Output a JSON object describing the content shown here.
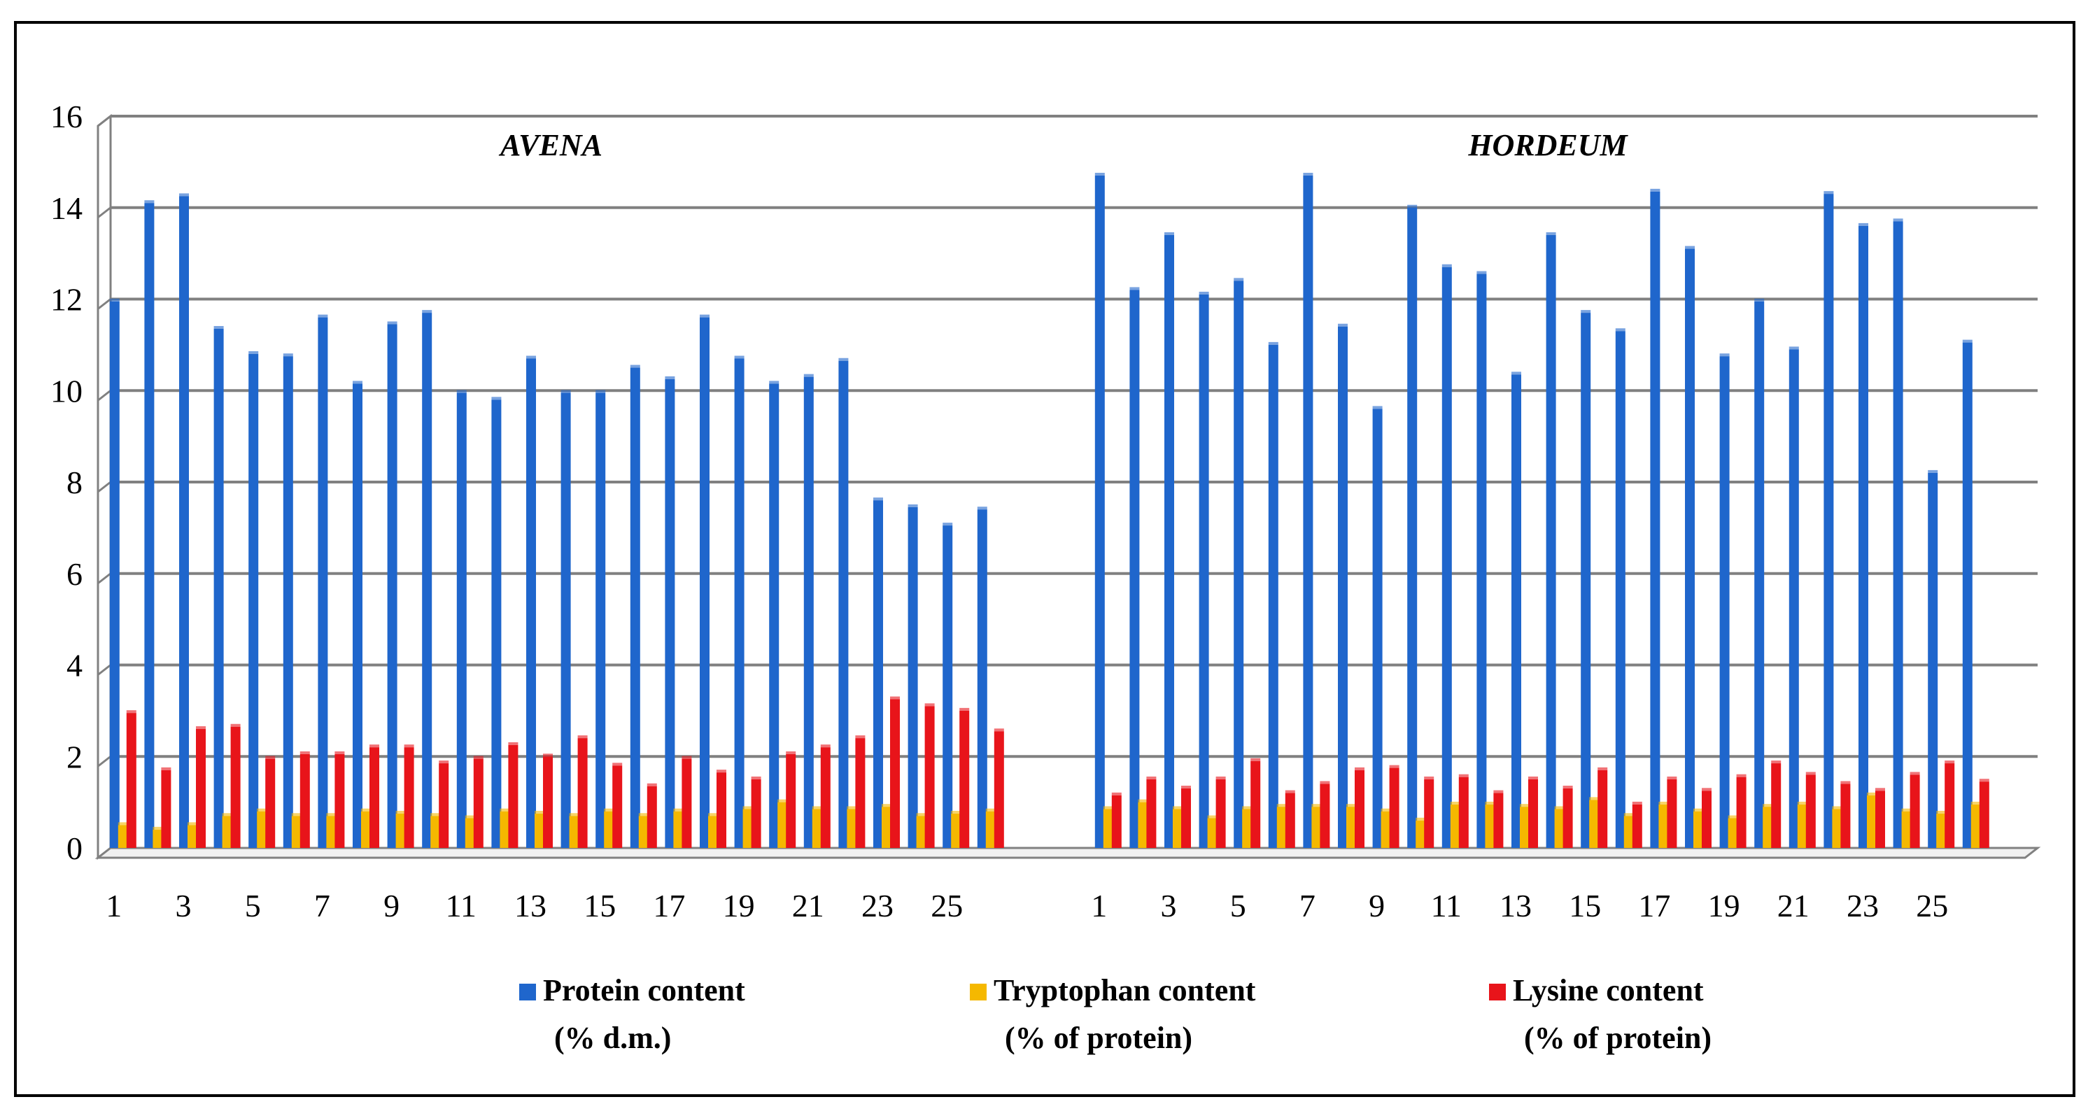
{
  "chart_data": {
    "type": "bar",
    "ylim": [
      0,
      16
    ],
    "yticks": [
      "0",
      "2",
      "4",
      "6",
      "8",
      "10",
      "12",
      "14",
      "16"
    ],
    "grid": true,
    "legend_placement": "bottom",
    "groups": [
      {
        "label": "AVENA",
        "categories": [
          "1",
          "2",
          "3",
          "4",
          "5",
          "6",
          "7",
          "8",
          "9",
          "10",
          "11",
          "12",
          "13",
          "14",
          "15",
          "16",
          "17",
          "18",
          "19",
          "20",
          "21",
          "22",
          "23",
          "24",
          "25",
          "26"
        ],
        "tick_labels": [
          "1",
          "3",
          "5",
          "7",
          "9",
          "11",
          "13",
          "15",
          "17",
          "19",
          "21",
          "23",
          "25"
        ],
        "series": [
          {
            "name": "Protein content (% d.m.)",
            "values": [
              11.95,
              14.1,
              14.25,
              11.35,
              10.8,
              10.75,
              11.6,
              10.15,
              11.45,
              11.7,
              9.95,
              9.8,
              10.7,
              9.95,
              9.95,
              10.5,
              10.25,
              11.6,
              10.7,
              10.15,
              10.3,
              10.65,
              7.6,
              7.45,
              7.05,
              7.4
            ]
          },
          {
            "name": "Tryptophan content (% of protein)",
            "values": [
              0.5,
              0.4,
              0.5,
              0.7,
              0.8,
              0.7,
              0.7,
              0.8,
              0.75,
              0.7,
              0.65,
              0.8,
              0.75,
              0.7,
              0.8,
              0.7,
              0.8,
              0.7,
              0.85,
              1.0,
              0.85,
              0.85,
              0.9,
              0.7,
              0.75,
              0.8
            ]
          },
          {
            "name": "Lysine content (% of protein)",
            "values": [
              2.95,
              1.7,
              2.6,
              2.65,
              1.95,
              2.05,
              2.05,
              2.2,
              2.2,
              1.85,
              1.95,
              2.25,
              2.0,
              2.4,
              1.8,
              1.35,
              1.95,
              1.65,
              1.5,
              2.05,
              2.2,
              2.4,
              3.25,
              3.1,
              3.0,
              2.55
            ]
          }
        ]
      },
      {
        "label": "HORDEUM",
        "categories": [
          "1",
          "2",
          "3",
          "4",
          "5",
          "6",
          "7",
          "8",
          "9",
          "10",
          "11",
          "12",
          "13",
          "14",
          "15",
          "16",
          "17",
          "18",
          "19",
          "20",
          "21",
          "22",
          "23",
          "24",
          "25",
          "26"
        ],
        "tick_labels": [
          "1",
          "3",
          "5",
          "7",
          "9",
          "11",
          "13",
          "15",
          "17",
          "19",
          "21",
          "23",
          "25"
        ],
        "series": [
          {
            "name": "Protein content (% d.m.)",
            "values": [
              14.7,
              12.2,
              13.4,
              12.1,
              12.4,
              11.0,
              14.7,
              11.4,
              9.6,
              14.0,
              12.7,
              12.55,
              10.35,
              13.4,
              11.7,
              11.3,
              14.35,
              13.1,
              10.75,
              11.95,
              10.9,
              14.3,
              13.6,
              13.7,
              8.2,
              11.05
            ]
          },
          {
            "name": "Tryptophan content (% of protein)",
            "values": [
              0.85,
              1.0,
              0.85,
              0.65,
              0.85,
              0.9,
              0.9,
              0.9,
              0.8,
              0.6,
              0.95,
              0.95,
              0.9,
              0.85,
              1.05,
              0.7,
              0.95,
              0.8,
              0.65,
              0.9,
              0.95,
              0.85,
              1.15,
              0.8,
              0.75,
              0.95
            ]
          },
          {
            "name": "Lysine content (% of protein)",
            "values": [
              1.15,
              1.5,
              1.3,
              1.5,
              1.9,
              1.2,
              1.4,
              1.7,
              1.75,
              1.5,
              1.55,
              1.2,
              1.5,
              1.3,
              1.7,
              0.95,
              1.5,
              1.25,
              1.55,
              1.85,
              1.6,
              1.4,
              1.25,
              1.6,
              1.85,
              1.45
            ]
          }
        ]
      }
    ],
    "colors": [
      "#1f66cc",
      "#f5b800",
      "#e8141a"
    ],
    "legend": [
      {
        "line1": "Protein content",
        "line2": "(% d.m.)",
        "color": "#1f66cc"
      },
      {
        "line1": "Tryptophan content",
        "line2": "(% of protein)",
        "color": "#f5b800"
      },
      {
        "line1": "Lysine content",
        "line2": "(% of protein)",
        "color": "#e8141a"
      }
    ]
  }
}
